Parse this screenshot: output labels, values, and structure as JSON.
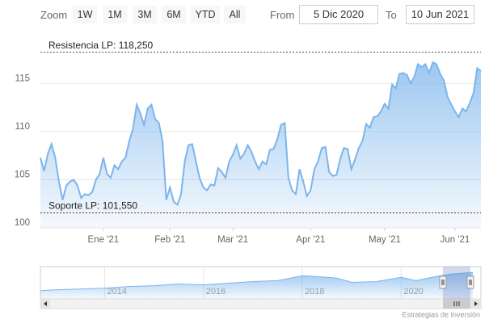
{
  "zoom": {
    "label": "Zoom",
    "buttons": [
      "1W",
      "1M",
      "3M",
      "6M",
      "YTD",
      "All"
    ]
  },
  "range": {
    "from_label": "From",
    "from": "5 Dic 2020",
    "to_label": "To",
    "to": "10 Jun 2021"
  },
  "chart_data": [
    {
      "type": "area",
      "color": "#7cb5ec",
      "grid": true,
      "values": [
        107.3,
        105.9,
        107.7,
        108.7,
        107.3,
        104.8,
        102.9,
        104.4,
        104.8,
        105.0,
        104.4,
        103.1,
        103.5,
        103.4,
        103.7,
        105.0,
        105.6,
        107.3,
        105.6,
        105.2,
        106.5,
        106.1,
        106.9,
        107.3,
        109.0,
        110.3,
        112.8,
        111.9,
        110.7,
        112.4,
        112.8,
        111.3,
        110.9,
        109.0,
        102.9,
        104.2,
        102.7,
        102.4,
        103.5,
        106.9,
        108.6,
        108.7,
        106.9,
        105.2,
        104.2,
        103.9,
        104.5,
        104.4,
        106.2,
        105.8,
        105.2,
        106.9,
        107.6,
        108.6,
        107.2,
        107.7,
        108.6,
        107.9,
        106.9,
        106.1,
        106.9,
        106.6,
        108.1,
        108.2,
        109.2,
        110.7,
        110.9,
        105.2,
        103.9,
        103.5,
        106.1,
        104.8,
        103.3,
        103.9,
        106.1,
        106.9,
        108.3,
        108.4,
        105.8,
        105.4,
        105.5,
        107.2,
        108.3,
        108.2,
        106.1,
        107.1,
        108.3,
        109.0,
        110.8,
        110.4,
        111.5,
        111.6,
        112.1,
        112.9,
        112.4,
        114.9,
        114.5,
        116.0,
        116.1,
        115.9,
        115.0,
        115.7,
        117.0,
        116.7,
        117.0,
        116.1,
        117.2,
        117.0,
        116.0,
        115.3,
        113.6,
        112.8,
        112.1,
        111.5,
        112.4,
        112.1,
        113.0,
        114.0,
        116.6,
        116.3
      ],
      "xlim": [
        0,
        119
      ],
      "xticks": [
        {
          "value": 17,
          "label": "Ene '21"
        },
        {
          "value": 35,
          "label": "Feb '21"
        },
        {
          "value": 52,
          "label": "Mar '21"
        },
        {
          "value": 73,
          "label": "Apr '21"
        },
        {
          "value": 93,
          "label": "May '21"
        },
        {
          "value": 112,
          "label": "Jun '21"
        }
      ],
      "ylim": [
        100,
        119.9
      ],
      "yticks": [
        100,
        105,
        110,
        115
      ],
      "plot_lines": [
        {
          "value": 118.25,
          "label": "Resistencia LP: 118,250",
          "color": "#2f5a2f"
        },
        {
          "value": 101.55,
          "label": "Soporte LP: 101,550",
          "color": "#8b1a1a"
        }
      ]
    },
    {
      "type": "area",
      "color": "#7cb5ec",
      "x": [
        2012.7,
        2013,
        2013.5,
        2014,
        2014.5,
        2015,
        2015.5,
        2016,
        2016.5,
        2017,
        2017.5,
        2018,
        2018.3,
        2018.7,
        2019,
        2019.5,
        2020,
        2020.3,
        2020.7,
        2021,
        2021.45
      ],
      "values": [
        88,
        89,
        90,
        91,
        93,
        94,
        96,
        95,
        97,
        99,
        100,
        106,
        105,
        103,
        98,
        99,
        104,
        100,
        105,
        108,
        110
      ],
      "xlim": [
        2012.7,
        2021.45
      ],
      "xticks": [
        2014,
        2016,
        2018,
        2020
      ],
      "ylim": [
        80,
        115
      ]
    }
  ],
  "credits": "Estrategias de Inversión"
}
